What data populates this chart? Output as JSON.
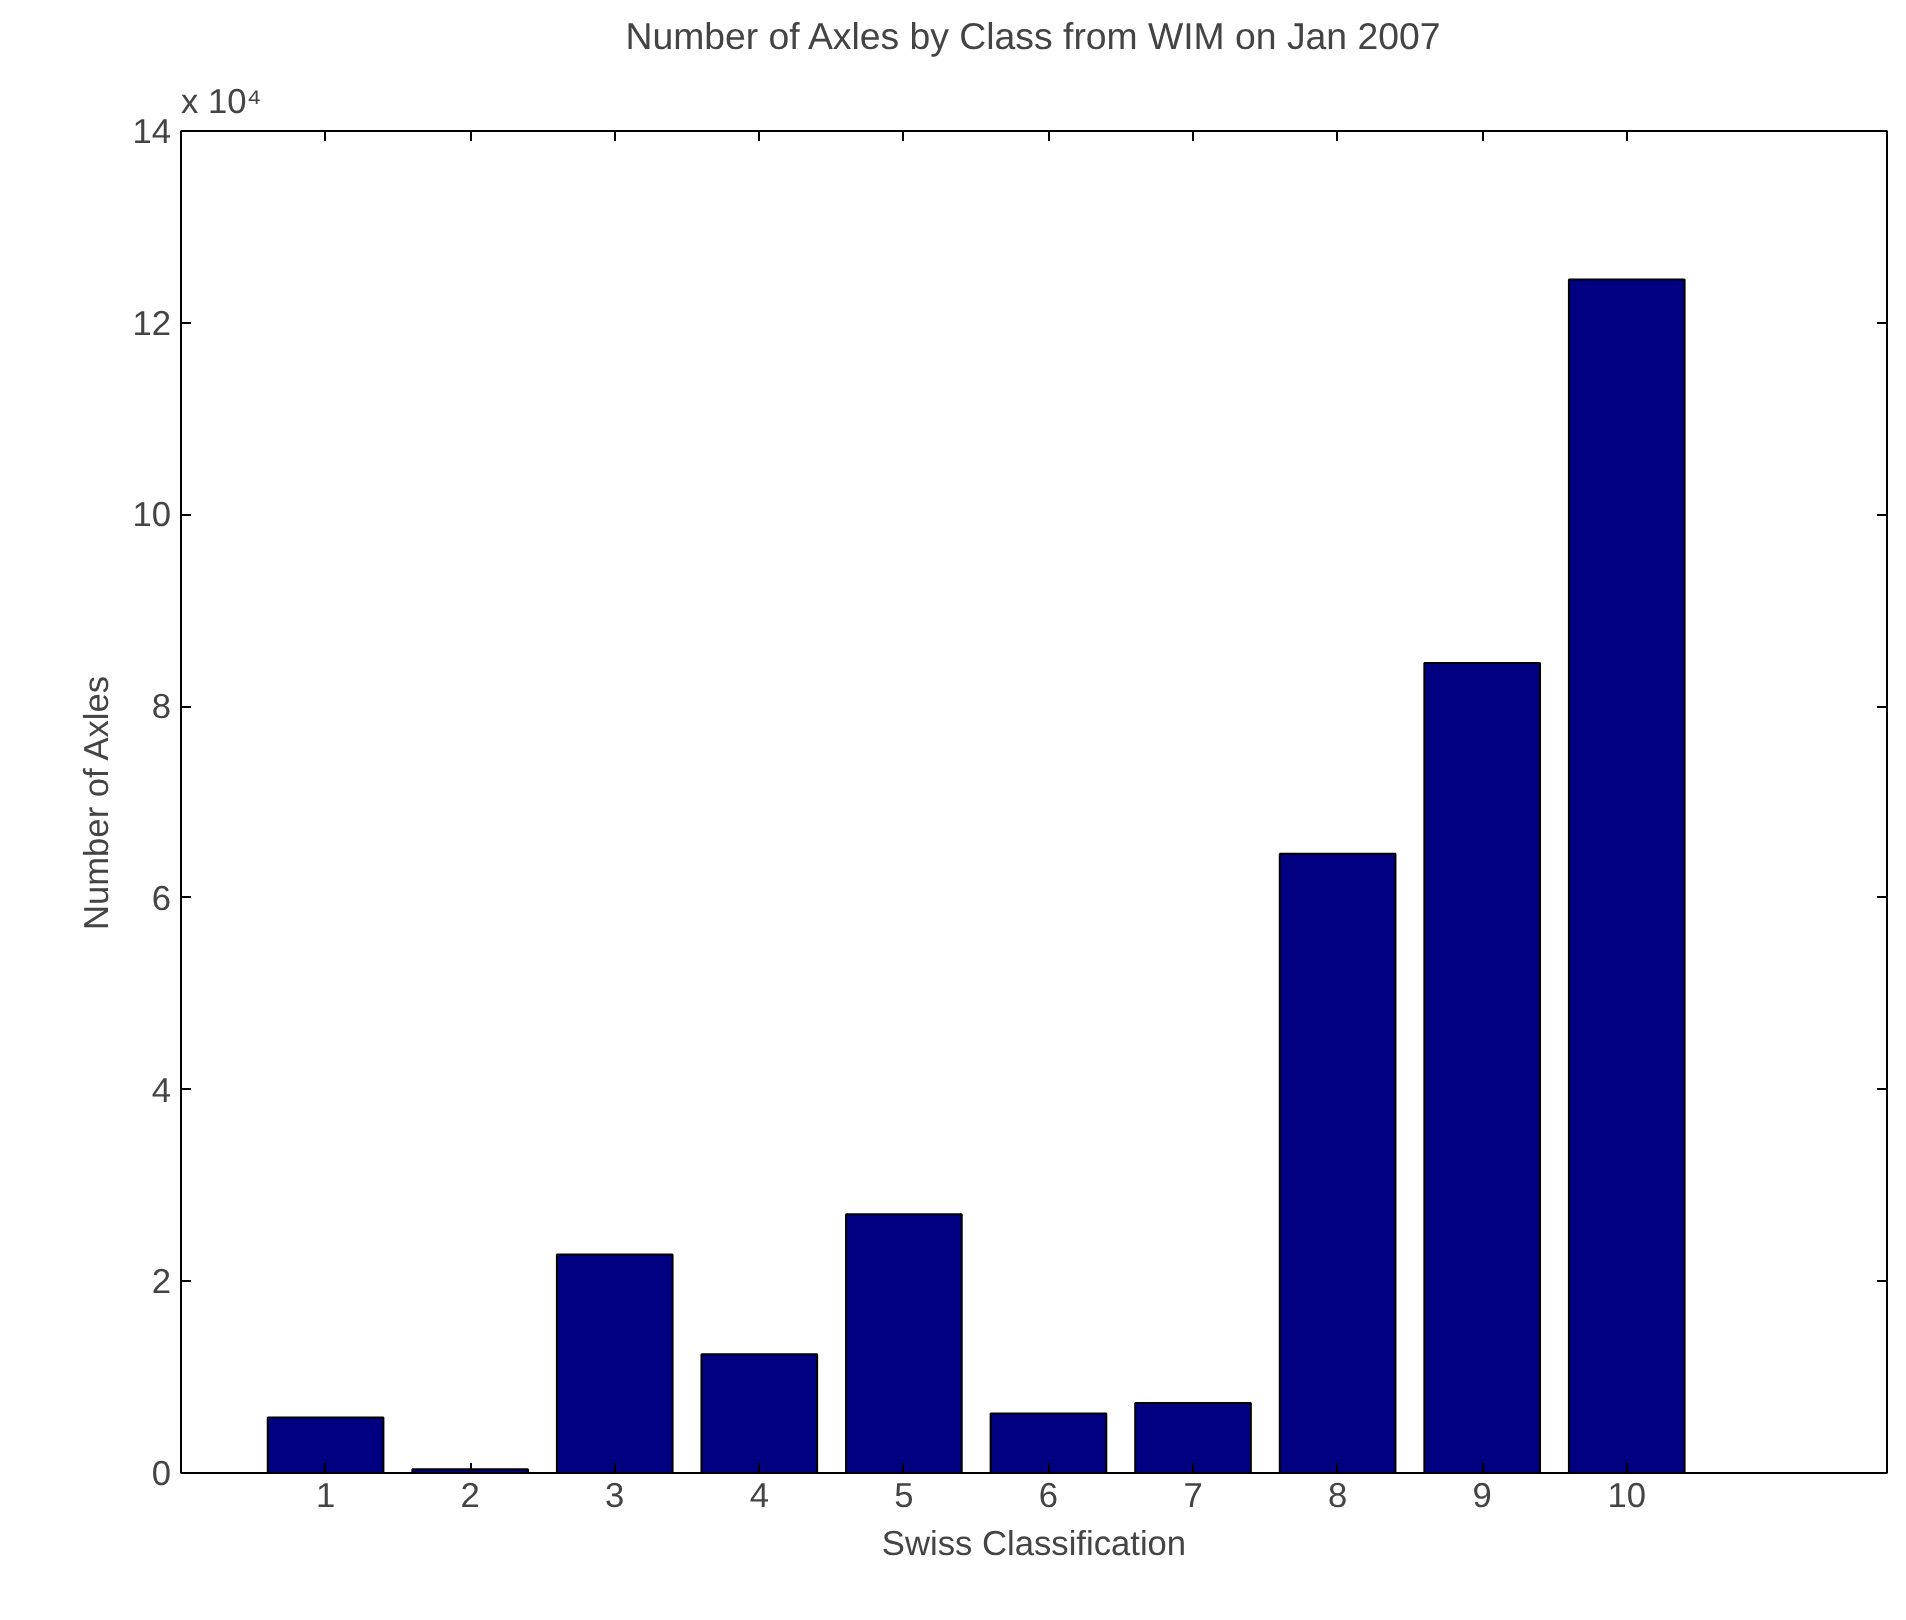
{
  "chart_data": {
    "type": "bar",
    "title": "Number of Axles by Class from WIM on Jan 2007",
    "xlabel": "Swiss Classification",
    "ylabel": "Number of Axles",
    "x": [
      1,
      2,
      3,
      4,
      5,
      6,
      7,
      8,
      9,
      10
    ],
    "values": [
      0.58,
      0.04,
      2.28,
      1.24,
      2.7,
      0.62,
      0.73,
      6.46,
      8.45,
      12.45
    ],
    "color": "#000080",
    "xlim": [
      0,
      11.8
    ],
    "xticks": [
      1,
      2,
      3,
      4,
      5,
      6,
      7,
      8,
      9,
      10
    ],
    "ylim": [
      0,
      14
    ],
    "yticks": [
      0,
      2,
      4,
      6,
      8,
      10,
      12,
      14
    ],
    "annotations": [
      "x 10⁴"
    ],
    "grid": false
  }
}
